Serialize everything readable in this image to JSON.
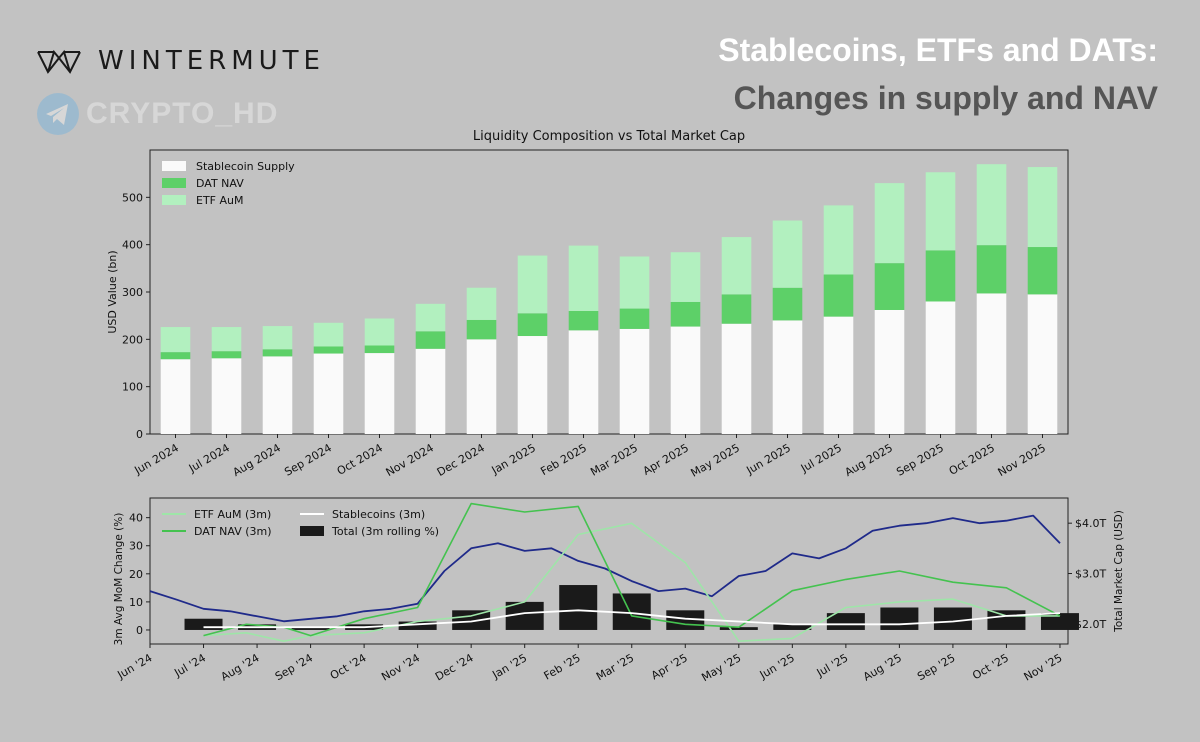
{
  "brand": {
    "name": "WINTERMUTE",
    "logo_icon": "wintermute-logo-icon"
  },
  "watermark": {
    "text": "CRYPTO_HD",
    "icon": "telegram-icon"
  },
  "headline": {
    "line1": "Stablecoins, ETFs and DATs:",
    "line2": "Changes in supply and NAV"
  },
  "colors": {
    "stablecoin": "#fafafa",
    "dat": "#5dd068",
    "etf": "#b2f0bf",
    "etf_line": "#9ee5a8",
    "dat_line": "#44c24f",
    "stable_line": "#ffffff",
    "total_bar": "#1a1a1a",
    "market_cap_line": "#1f2a8a"
  },
  "chart_data": [
    {
      "type": "bar",
      "stacked": true,
      "title": "Liquidity Composition vs Total Market Cap",
      "xlabel": "",
      "ylabel": "USD Value (bn)",
      "ylim": [
        0,
        600
      ],
      "yticks": [
        0,
        100,
        200,
        300,
        400,
        500
      ],
      "legend_position": "top-left",
      "categories": [
        "Jun 2024",
        "Jul 2024",
        "Aug 2024",
        "Sep 2024",
        "Oct 2024",
        "Nov 2024",
        "Dec 2024",
        "Jan 2025",
        "Feb 2025",
        "Mar 2025",
        "Apr 2025",
        "May 2025",
        "Jun 2025",
        "Jul 2025",
        "Aug 2025",
        "Sep 2025",
        "Oct 2025",
        "Nov 2025"
      ],
      "series": [
        {
          "name": "Stablecoin Supply",
          "values": [
            158,
            160,
            164,
            170,
            171,
            180,
            200,
            207,
            219,
            222,
            227,
            233,
            240,
            248,
            262,
            280,
            297,
            295
          ]
        },
        {
          "name": "DAT NAV",
          "values": [
            15,
            15,
            15,
            15,
            16,
            37,
            41,
            48,
            41,
            43,
            52,
            62,
            69,
            89,
            99,
            108,
            102,
            100
          ]
        },
        {
          "name": "ETF AuM",
          "values": [
            53,
            51,
            49,
            50,
            57,
            58,
            68,
            122,
            138,
            110,
            105,
            121,
            142,
            146,
            169,
            165,
            171,
            169
          ]
        }
      ]
    },
    {
      "type": "line",
      "title": "",
      "ylabel": "3m Avg MoM Change (%)",
      "y2label": "Total Market Cap (USD)",
      "ylim": [
        -5,
        47
      ],
      "yticks": [
        0,
        10,
        20,
        30,
        40
      ],
      "y2lim": [
        1.6,
        4.5
      ],
      "y2ticks": [
        2.0,
        3.0,
        4.0
      ],
      "y2ticklabels": [
        "$2.0T",
        "$3.0T",
        "$4.0T"
      ],
      "legend_position": "top-left",
      "categories": [
        "Jun '24",
        "Jul '24",
        "Aug '24",
        "Sep '24",
        "Oct '24",
        "Nov '24",
        "Dec '24",
        "Jan '25",
        "Feb '25",
        "Mar '25",
        "Apr '25",
        "May '25",
        "Jun '25",
        "Jul '25",
        "Aug '25",
        "Sep '25",
        "Oct '25",
        "Nov '25"
      ],
      "x": [
        0,
        1,
        2,
        3,
        4,
        5,
        6,
        7,
        8,
        9,
        10,
        11,
        12,
        13,
        14,
        15,
        16,
        17
      ],
      "series": [
        {
          "name": "ETF AuM (3m)",
          "x": [
            1,
            1.8,
            2.5,
            3,
            4,
            5,
            6,
            7,
            8,
            9,
            10,
            11,
            12,
            13,
            14,
            15,
            16,
            17
          ],
          "values": [
            -2,
            -1,
            -4,
            -2,
            -1,
            3,
            5,
            10,
            34,
            38,
            24,
            -4,
            -3,
            8,
            10,
            11,
            5,
            5
          ]
        },
        {
          "name": "DAT NAV (3m)",
          "x": [
            1,
            1.8,
            2.5,
            3,
            4,
            5,
            6,
            7,
            8,
            9,
            10,
            11,
            12,
            13,
            14,
            15,
            16,
            17
          ],
          "values": [
            -2,
            2,
            1,
            -2,
            4,
            8,
            45,
            42,
            44,
            5,
            2,
            1,
            14,
            18,
            21,
            17,
            15,
            5
          ]
        },
        {
          "name": "Stablecoins (3m)",
          "x": [
            1,
            2,
            3,
            4,
            5,
            6,
            7,
            8,
            9,
            10,
            11,
            12,
            13,
            14,
            15,
            16,
            17
          ],
          "values": [
            1,
            1,
            1,
            1,
            2,
            3,
            6,
            7,
            6,
            4,
            3,
            2,
            2,
            2,
            3,
            5,
            6
          ]
        },
        {
          "name": "Total (3m rolling %)",
          "bar": true,
          "x": [
            1,
            2,
            3,
            4,
            5,
            6,
            7,
            8,
            9,
            10,
            11,
            12,
            13,
            14,
            15,
            16,
            17
          ],
          "values": [
            4,
            2,
            1,
            2,
            3,
            7,
            10,
            16,
            13,
            7,
            1,
            2,
            6,
            8,
            8,
            7,
            6
          ]
        },
        {
          "name": "Total Market Cap",
          "axis": "right",
          "x": [
            0,
            0.5,
            1,
            1.5,
            2,
            2.5,
            3,
            3.5,
            4,
            4.5,
            5,
            5.5,
            6,
            6.5,
            7,
            7.5,
            8,
            8.5,
            9,
            9.5,
            10,
            10.5,
            11,
            11.5,
            12,
            12.5,
            13,
            13.5,
            14,
            14.5,
            15,
            15.5,
            16,
            16.5,
            17
          ],
          "values": [
            2.65,
            2.48,
            2.3,
            2.25,
            2.15,
            2.05,
            2.1,
            2.15,
            2.25,
            2.3,
            2.4,
            3.05,
            3.5,
            3.6,
            3.45,
            3.5,
            3.25,
            3.1,
            2.85,
            2.65,
            2.7,
            2.55,
            2.95,
            3.05,
            3.4,
            3.3,
            3.5,
            3.85,
            3.95,
            4.0,
            4.1,
            4.0,
            4.05,
            4.15,
            3.6
          ]
        }
      ]
    }
  ]
}
